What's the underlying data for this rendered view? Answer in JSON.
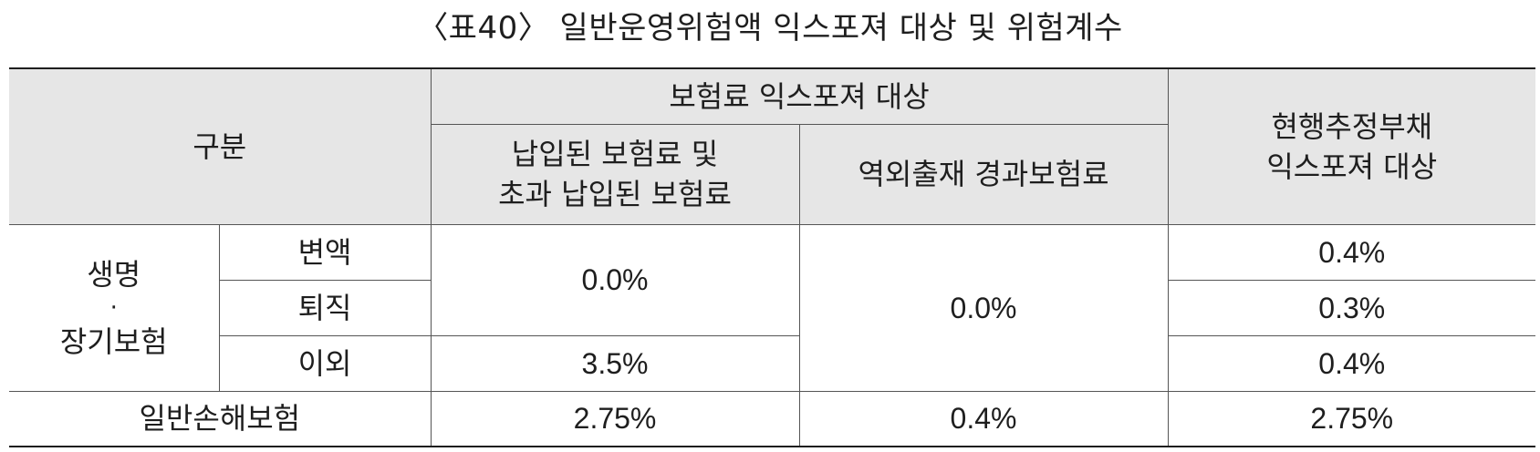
{
  "title": "〈표40〉 일반운영위험액 익스포져 대상 및 위험계수",
  "header": {
    "category": "구분",
    "premium_exposure": "보험료 익스포져 대상",
    "paid_premium_line1": "납입된 보험료 및",
    "paid_premium_line2": "초과 납입된 보험료",
    "reinsurance_premium": "역외출재 경과보험료",
    "reserve_line1": "현행추정부채",
    "reserve_line2": "익스포져 대상"
  },
  "life": {
    "label_line1": "생명",
    "label_dot": "·",
    "label_line2": "장기보험",
    "rows": [
      {
        "label": "변액",
        "reserve": "0.4%"
      },
      {
        "label": "퇴직",
        "reserve": "0.3%"
      },
      {
        "label": "이외",
        "reserve": "0.4%"
      }
    ],
    "paid_variable_retirement": "0.0%",
    "paid_other": "3.5%",
    "reinsurance": "0.0%"
  },
  "general": {
    "label": "일반손해보험",
    "paid": "2.75%",
    "reinsurance": "0.4%",
    "reserve": "2.75%"
  }
}
